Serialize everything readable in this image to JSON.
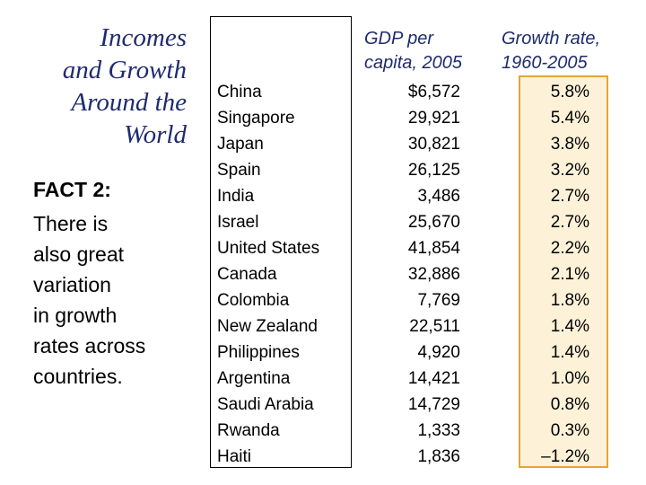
{
  "title": {
    "lines": [
      "Incomes",
      "and Growth",
      "Around the",
      "World"
    ]
  },
  "fact": {
    "heading": "FACT 2:",
    "body_lines": [
      "There is",
      "also great",
      "variation",
      "in growth",
      "rates across",
      "countries."
    ]
  },
  "table": {
    "headers": {
      "gdp": [
        "GDP per",
        "capita, 2005"
      ],
      "growth": [
        "Growth rate,",
        "1960-2005"
      ]
    },
    "rows": [
      {
        "country": "China",
        "gdp": "$6,572",
        "growth": "5.8%"
      },
      {
        "country": "Singapore",
        "gdp": "29,921",
        "growth": "5.4%"
      },
      {
        "country": "Japan",
        "gdp": "30,821",
        "growth": "3.8%"
      },
      {
        "country": "Spain",
        "gdp": "26,125",
        "growth": "3.2%"
      },
      {
        "country": "India",
        "gdp": "3,486",
        "growth": "2.7%"
      },
      {
        "country": "Israel",
        "gdp": "25,670",
        "growth": "2.7%"
      },
      {
        "country": "United States",
        "gdp": "41,854",
        "growth": "2.2%"
      },
      {
        "country": "Canada",
        "gdp": "32,886",
        "growth": "2.1%"
      },
      {
        "country": "Colombia",
        "gdp": "7,769",
        "growth": "1.8%"
      },
      {
        "country": "New Zealand",
        "gdp": "22,511",
        "growth": "1.4%"
      },
      {
        "country": "Philippines",
        "gdp": "4,920",
        "growth": "1.4%"
      },
      {
        "country": "Argentina",
        "gdp": "14,421",
        "growth": "1.0%"
      },
      {
        "country": "Saudi Arabia",
        "gdp": "14,729",
        "growth": "0.8%"
      },
      {
        "country": "Rwanda",
        "gdp": "1,333",
        "growth": "0.3%"
      },
      {
        "country": "Haiti",
        "gdp": "1,836",
        "growth": "–1.2%"
      }
    ]
  },
  "colors": {
    "title": "#1f2b6e",
    "highlight_fill": "#fdf2d8",
    "highlight_border": "#e4a43a"
  }
}
